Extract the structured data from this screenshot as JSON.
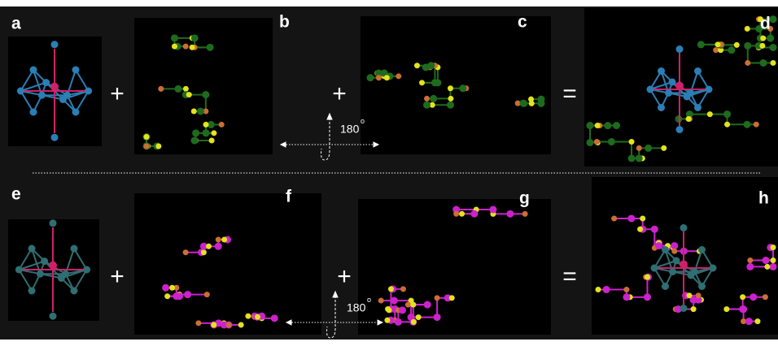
{
  "panels": [
    {
      "label": "a"
    },
    {
      "label": "b"
    },
    {
      "label": "c"
    },
    {
      "label": "d"
    },
    {
      "label": "e"
    },
    {
      "label": "f"
    },
    {
      "label": "g"
    },
    {
      "label": "h"
    }
  ],
  "operators": [
    "+",
    "+",
    "=",
    "+",
    "+",
    "="
  ],
  "rotations": [
    {
      "angle": "180",
      "unit": "o"
    },
    {
      "angle": "180",
      "unit": "o"
    }
  ]
}
